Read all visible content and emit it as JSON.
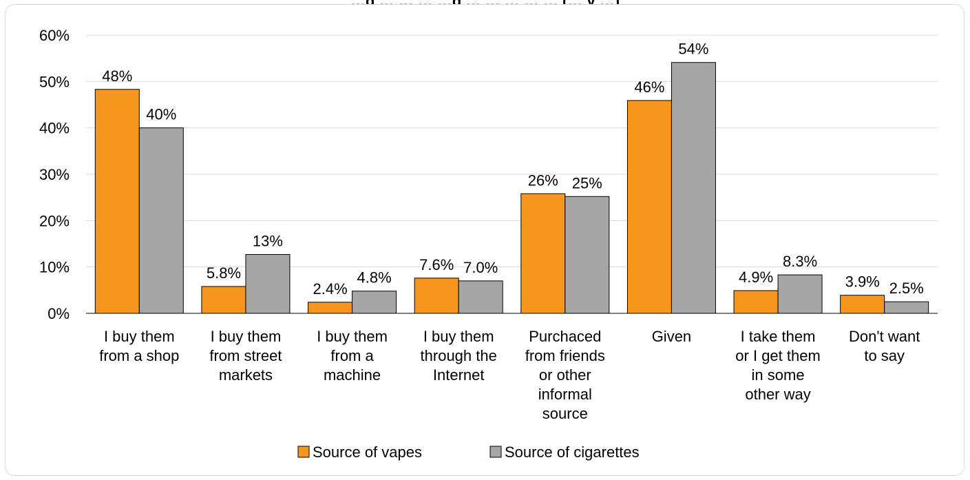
{
  "chart_data": {
    "type": "bar",
    "title": "…g … … … …g … … … … … (… y …)",
    "categories": [
      [
        "I buy them",
        "from a shop"
      ],
      [
        "I buy them",
        "from street",
        "markets"
      ],
      [
        "I buy them",
        "from a",
        "machine"
      ],
      [
        "I buy them",
        "through the",
        "Internet"
      ],
      [
        "Purchaced",
        "from friends",
        "or other",
        "informal",
        "source"
      ],
      [
        "Given"
      ],
      [
        "I take them",
        "or I get them",
        "in some",
        "other way"
      ],
      [
        "Don't want",
        "to say"
      ]
    ],
    "series": [
      {
        "name": "Source of vapes",
        "color": "#f7961d",
        "values": [
          48.3,
          5.8,
          2.4,
          7.6,
          25.8,
          45.9,
          4.9,
          3.9
        ],
        "labels": [
          "48%",
          "5.8%",
          "2.4%",
          "7.6%",
          "26%",
          "46%",
          "4.9%",
          "3.9%"
        ]
      },
      {
        "name": "Source of cigarettes",
        "color": "#a6a6a6",
        "values": [
          40.0,
          12.7,
          4.8,
          7.0,
          25.2,
          54.1,
          8.3,
          2.5
        ],
        "labels": [
          "40%",
          "13%",
          "4.8%",
          "7.0%",
          "25%",
          "54%",
          "8.3%",
          "2.5%"
        ]
      }
    ],
    "ylim": [
      0,
      60
    ],
    "yticks": [
      "0%",
      "10%",
      "20%",
      "30%",
      "40%",
      "50%",
      "60%"
    ],
    "grid": true,
    "legend": "bottom"
  }
}
